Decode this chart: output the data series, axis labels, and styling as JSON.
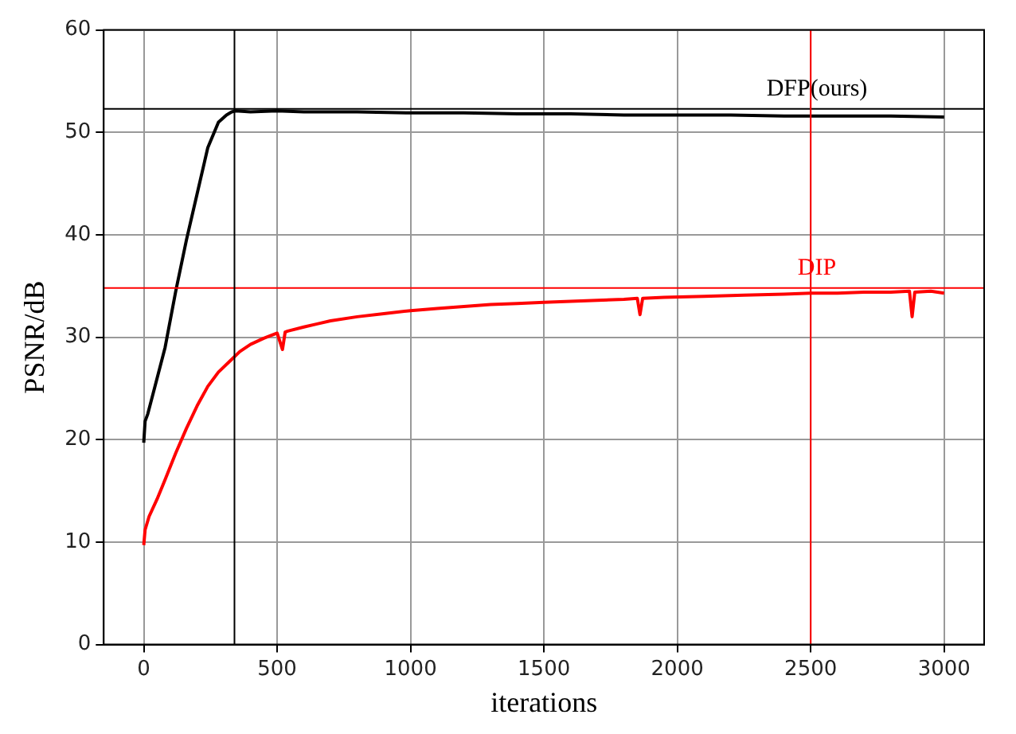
{
  "chart_data": {
    "type": "line",
    "xlabel": "iterations",
    "ylabel": "PSNR/dB",
    "xlim": [
      -150,
      3150
    ],
    "xticks": [
      0,
      500,
      1000,
      1500,
      2000,
      2500,
      3000
    ],
    "ylim": [
      0,
      60
    ],
    "yticks": [
      0,
      10,
      20,
      30,
      40,
      50,
      60
    ],
    "grid": true,
    "legend": false,
    "marker": "none",
    "line_style": "solid",
    "series": [
      {
        "color": "#000000",
        "x": [
          0,
          5,
          15,
          40,
          80,
          120,
          160,
          200,
          240,
          280,
          310,
          330,
          345,
          400,
          500,
          600,
          800,
          1000,
          1200,
          1400,
          1600,
          1800,
          2000,
          2200,
          2400,
          2600,
          2800,
          3000
        ],
        "values": [
          19.7,
          21.8,
          22.5,
          25,
          29,
          34.5,
          39.5,
          44,
          48.5,
          51,
          51.7,
          52,
          52.1,
          52.0,
          52.1,
          52.0,
          52.0,
          51.9,
          51.9,
          51.8,
          51.8,
          51.7,
          51.7,
          51.7,
          51.6,
          51.6,
          51.6,
          51.5
        ]
      },
      {
        "color": "#ff0000",
        "x": [
          0,
          5,
          20,
          50,
          80,
          120,
          160,
          200,
          240,
          280,
          320,
          360,
          400,
          450,
          500,
          520,
          530,
          540,
          600,
          650,
          700,
          800,
          900,
          1000,
          1100,
          1200,
          1300,
          1400,
          1500,
          1600,
          1700,
          1800,
          1850,
          1860,
          1870,
          1950,
          2100,
          2250,
          2400,
          2500,
          2600,
          2700,
          2800,
          2870,
          2880,
          2890,
          2950,
          3000
        ],
        "values": [
          9.7,
          11.2,
          12.5,
          14.2,
          16.1,
          18.7,
          21.1,
          23.3,
          25.2,
          26.6,
          27.6,
          28.6,
          29.3,
          29.9,
          30.4,
          28.8,
          30.5,
          30.6,
          31.0,
          31.3,
          31.6,
          32.0,
          32.3,
          32.6,
          32.8,
          33.0,
          33.2,
          33.3,
          33.4,
          33.5,
          33.6,
          33.7,
          33.8,
          32.2,
          33.8,
          33.9,
          34.0,
          34.1,
          34.2,
          34.3,
          34.3,
          34.4,
          34.4,
          34.5,
          32.0,
          34.4,
          34.5,
          34.3
        ]
      }
    ],
    "ref_lines": [
      {
        "axis": "y",
        "value": 52.3,
        "label": "DFP(ours)",
        "color": "#000000"
      },
      {
        "axis": "y",
        "value": 34.8,
        "label": "DIP",
        "color": "#ff0000"
      },
      {
        "axis": "x",
        "value": 340,
        "color": "#000000"
      },
      {
        "axis": "x",
        "value": 2500,
        "color": "#ff0000"
      }
    ]
  }
}
